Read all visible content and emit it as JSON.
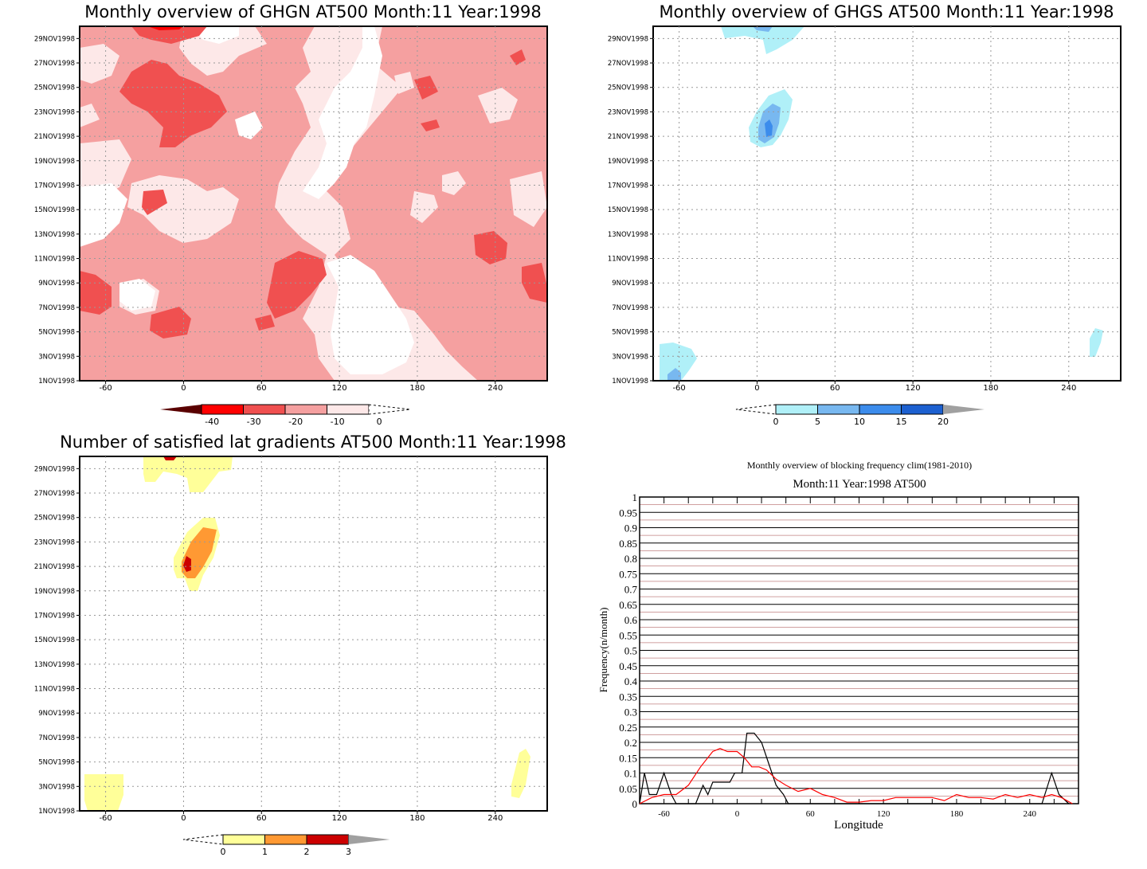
{
  "panels": {
    "ghgn": {
      "title": "Monthly overview of GHGN AT500 Month:11 Year:1998",
      "x_ticks": [
        "-60",
        "0",
        "60",
        "120",
        "180",
        "240"
      ],
      "colorbar": {
        "labels": [
          "-40",
          "-30",
          "-20",
          "-10",
          "0"
        ],
        "colors": [
          "#5a0000",
          "#ff0000",
          "#f05050",
          "#f5a0a0",
          "#fde8e8",
          "#ffffff"
        ]
      }
    },
    "ghgs": {
      "title": "Monthly overview of GHGS AT500 Month:11 Year:1998",
      "x_ticks": [
        "-60",
        "0",
        "60",
        "120",
        "180",
        "240"
      ],
      "colorbar": {
        "labels": [
          "0",
          "5",
          "10",
          "15",
          "20"
        ],
        "colors": [
          "#ffffff",
          "#b0f0f8",
          "#78b8f0",
          "#3c8cec",
          "#1c60d0",
          "#a0a0a0"
        ]
      }
    },
    "gradients": {
      "title": "Number of satisfied lat gradients AT500 Month:11 Year:1998",
      "x_ticks": [
        "-60",
        "0",
        "60",
        "120",
        "180",
        "240"
      ],
      "colorbar": {
        "labels": [
          "0",
          "1",
          "2",
          "3"
        ],
        "colors": [
          "#ffffff",
          "#ffff99",
          "#ff9933",
          "#cc0000",
          "#a0a0a0"
        ]
      }
    },
    "frequency": {
      "title": "Monthly overview of blocking frequency clim(1981-2010)",
      "subtitle": "Month:11 Year:1998  AT500"
    }
  },
  "date_axis": [
    "1NOV1998",
    "3NOV1998",
    "5NOV1998",
    "7NOV1998",
    "9NOV1998",
    "11NOV1998",
    "13NOV1998",
    "15NOV1998",
    "17NOV1998",
    "19NOV1998",
    "21NOV1998",
    "23NOV1998",
    "25NOV1998",
    "27NOV1998",
    "29NOV1998"
  ],
  "chart_data": [
    {
      "type": "heatmap",
      "title": "Monthly overview of GHGN AT500 Month:11 Year:1998",
      "x_ticks": [
        -60,
        0,
        60,
        120,
        180,
        240
      ],
      "xlim": [
        -80,
        280
      ],
      "y_ticks": [
        "1NOV1998",
        "3NOV1998",
        "5NOV1998",
        "7NOV1998",
        "9NOV1998",
        "11NOV1998",
        "13NOV1998",
        "15NOV1998",
        "17NOV1998",
        "19NOV1998",
        "21NOV1998",
        "23NOV1998",
        "25NOV1998",
        "27NOV1998",
        "29NOV1998"
      ],
      "colorbar_levels": [
        -40,
        -30,
        -20,
        -10,
        0
      ],
      "grid": true
    },
    {
      "type": "heatmap",
      "title": "Monthly overview of GHGS AT500 Month:11 Year:1998",
      "x_ticks": [
        -60,
        0,
        60,
        120,
        180,
        240
      ],
      "xlim": [
        -80,
        280
      ],
      "y_ticks": [
        "1NOV1998",
        "3NOV1998",
        "5NOV1998",
        "7NOV1998",
        "9NOV1998",
        "11NOV1998",
        "13NOV1998",
        "15NOV1998",
        "17NOV1998",
        "19NOV1998",
        "21NOV1998",
        "23NOV1998",
        "25NOV1998",
        "27NOV1998",
        "29NOV1998"
      ],
      "colorbar_levels": [
        0,
        5,
        10,
        15,
        20
      ],
      "grid": true
    },
    {
      "type": "heatmap",
      "title": "Number of satisfied lat gradients AT500 Month:11 Year:1998",
      "x_ticks": [
        -60,
        0,
        60,
        120,
        180,
        240
      ],
      "xlim": [
        -80,
        280
      ],
      "y_ticks": [
        "1NOV1998",
        "3NOV1998",
        "5NOV1998",
        "7NOV1998",
        "9NOV1998",
        "11NOV1998",
        "13NOV1998",
        "15NOV1998",
        "17NOV1998",
        "19NOV1998",
        "21NOV1998",
        "23NOV1998",
        "25NOV1998",
        "27NOV1998",
        "29NOV1998"
      ],
      "colorbar_levels": [
        0,
        1,
        2,
        3
      ],
      "grid": true
    },
    {
      "type": "line",
      "title": "Monthly overview of blocking frequency clim(1981-2010)",
      "subtitle": "Month:11 Year:1998  AT500",
      "xlabel": "Longitude",
      "ylabel": "Frequency(n/month)",
      "xlim": [
        -80,
        280
      ],
      "ylim": [
        0,
        1
      ],
      "x_ticks": [
        -60,
        0,
        60,
        120,
        180,
        240
      ],
      "y_ticks": [
        "0",
        "0.05",
        "0.1",
        "0.15",
        "0.2",
        "0.25",
        "0.3",
        "0.35",
        "0.4",
        "0.45",
        "0.5",
        "0.55",
        "0.6",
        "0.65",
        "0.7",
        "0.75",
        "0.8",
        "0.85",
        "0.9",
        "0.95",
        "1"
      ],
      "series": [
        {
          "color": "#000000",
          "points": [
            [
              -80,
              0
            ],
            [
              -76,
              0.1
            ],
            [
              -72,
              0.03
            ],
            [
              -66,
              0.03
            ],
            [
              -60,
              0.1
            ],
            [
              -54,
              0.03
            ],
            [
              -50,
              0
            ],
            [
              -34,
              0
            ],
            [
              -28,
              0.06
            ],
            [
              -24,
              0.03
            ],
            [
              -20,
              0.07
            ],
            [
              -12,
              0.07
            ],
            [
              -6,
              0.07
            ],
            [
              -2,
              0.1
            ],
            [
              4,
              0.1
            ],
            [
              8,
              0.23
            ],
            [
              14,
              0.23
            ],
            [
              20,
              0.2
            ],
            [
              26,
              0.13
            ],
            [
              32,
              0.06
            ],
            [
              38,
              0.03
            ],
            [
              42,
              0
            ],
            [
              250,
              0
            ],
            [
              258,
              0.1
            ],
            [
              264,
              0.03
            ],
            [
              272,
              0
            ]
          ]
        },
        {
          "color": "#ff0000",
          "points": [
            [
              -80,
              0
            ],
            [
              -70,
              0.02
            ],
            [
              -60,
              0.03
            ],
            [
              -50,
              0.03
            ],
            [
              -40,
              0.06
            ],
            [
              -30,
              0.12
            ],
            [
              -20,
              0.17
            ],
            [
              -14,
              0.18
            ],
            [
              -8,
              0.17
            ],
            [
              0,
              0.17
            ],
            [
              6,
              0.15
            ],
            [
              12,
              0.12
            ],
            [
              18,
              0.12
            ],
            [
              24,
              0.11
            ],
            [
              32,
              0.08
            ],
            [
              40,
              0.06
            ],
            [
              50,
              0.04
            ],
            [
              60,
              0.05
            ],
            [
              70,
              0.03
            ],
            [
              80,
              0.02
            ],
            [
              90,
              0.005
            ],
            [
              100,
              0.005
            ],
            [
              110,
              0.01
            ],
            [
              120,
              0.01
            ],
            [
              130,
              0.02
            ],
            [
              140,
              0.02
            ],
            [
              150,
              0.02
            ],
            [
              160,
              0.02
            ],
            [
              170,
              0.01
            ],
            [
              180,
              0.03
            ],
            [
              190,
              0.02
            ],
            [
              200,
              0.02
            ],
            [
              210,
              0.015
            ],
            [
              220,
              0.03
            ],
            [
              230,
              0.02
            ],
            [
              240,
              0.03
            ],
            [
              250,
              0.02
            ],
            [
              258,
              0.03
            ],
            [
              266,
              0.02
            ],
            [
              275,
              0
            ]
          ]
        }
      ]
    }
  ]
}
